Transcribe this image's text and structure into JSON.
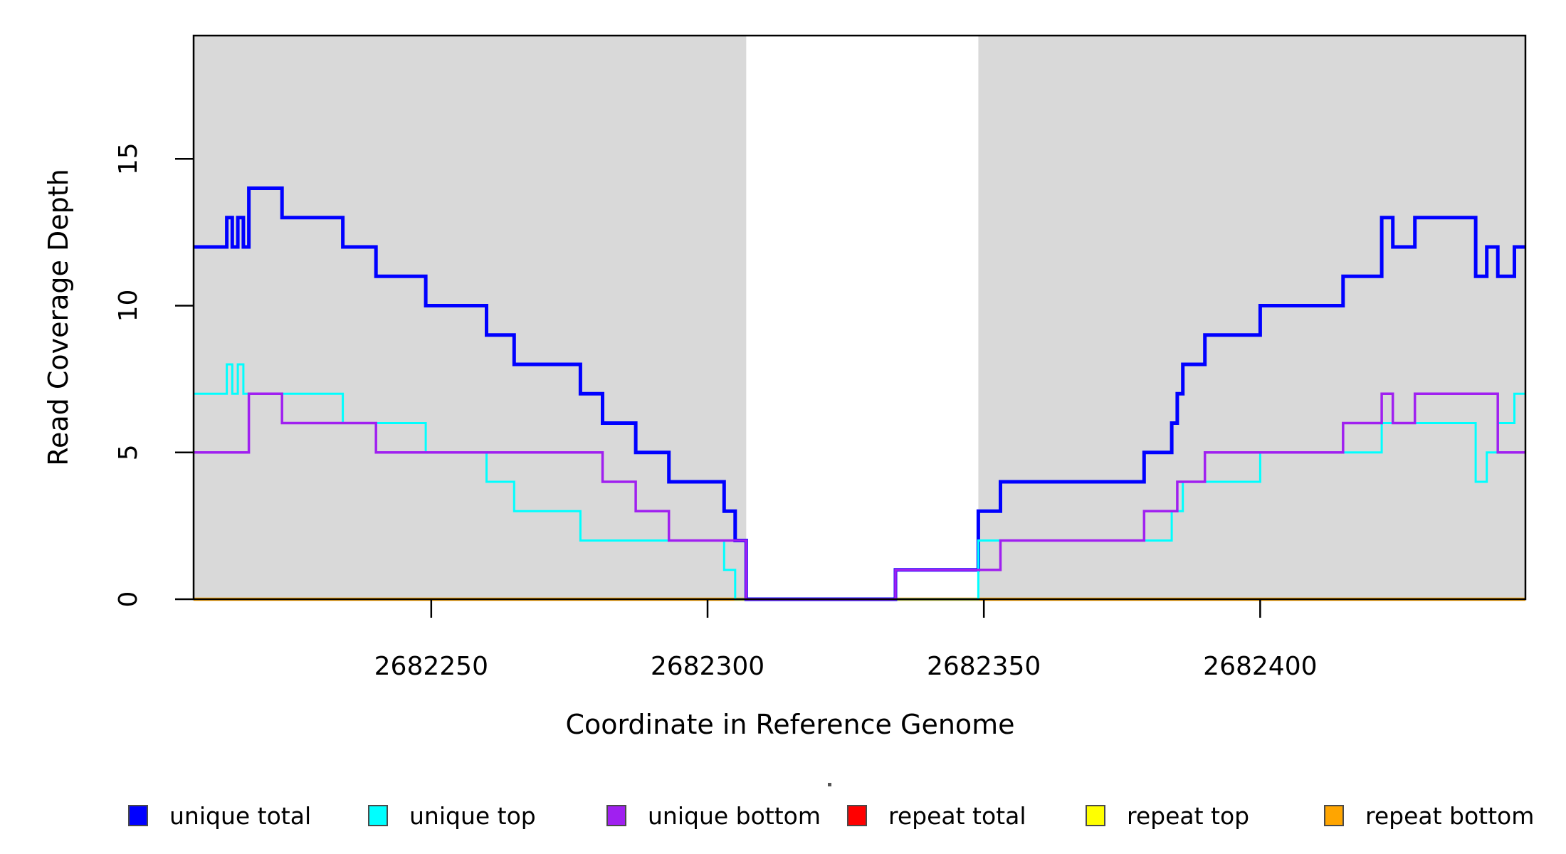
{
  "figure": {
    "background_color": "#FFFFFF",
    "plot_background_shading_color": "#D9D9D9"
  },
  "y_axis": {
    "title": "Read Coverage Depth",
    "ticks": [
      {
        "value": 0,
        "label": "0"
      },
      {
        "value": 5,
        "label": "5"
      },
      {
        "value": 10,
        "label": "10"
      },
      {
        "value": 15,
        "label": "15"
      }
    ]
  },
  "x_axis": {
    "title": "Coordinate in Reference Genome",
    "ticks": [
      {
        "value": 2682250,
        "label": "2682250"
      },
      {
        "value": 2682300,
        "label": "2682300"
      },
      {
        "value": 2682350,
        "label": "2682350"
      },
      {
        "value": 2682400,
        "label": "2682400"
      }
    ]
  },
  "legend": {
    "items": [
      {
        "label": "unique total",
        "color": "#0000FF"
      },
      {
        "label": "unique top",
        "color": "#00FFFF"
      },
      {
        "label": "unique bottom",
        "color": "#A020F0"
      },
      {
        "label": "repeat total",
        "color": "#FF0000"
      },
      {
        "label": "repeat top",
        "color": "#FFFF00"
      },
      {
        "label": "repeat bottom",
        "color": "#FFA500"
      }
    ]
  },
  "chart_data": {
    "type": "line",
    "subtype": "step-after",
    "title": "",
    "xlabel": "Coordinate in Reference Genome",
    "ylabel": "Read Coverage Depth",
    "x_range": [
      2682207,
      2682448
    ],
    "y_range": [
      0,
      19.2
    ],
    "x_ticks": [
      2682250,
      2682300,
      2682350,
      2682400
    ],
    "y_ticks": [
      0,
      5,
      10,
      15
    ],
    "grid": false,
    "legend_position": "below",
    "shaded_regions": [
      {
        "from": 2682207,
        "to": 2682307,
        "color": "#D9D9D9",
        "meaning": "shaded-region-left"
      },
      {
        "from": 2682349,
        "to": 2682448,
        "color": "#D9D9D9",
        "meaning": "shaded-region-right"
      }
    ],
    "series": [
      {
        "name": "unique total",
        "color": "#0000FF",
        "stroke_width": 5,
        "draw_order": 4,
        "points": [
          [
            2682207,
            12
          ],
          [
            2682213,
            13
          ],
          [
            2682214,
            12
          ],
          [
            2682215,
            13
          ],
          [
            2682216,
            12
          ],
          [
            2682217,
            14
          ],
          [
            2682223,
            13
          ],
          [
            2682234,
            12
          ],
          [
            2682240,
            11
          ],
          [
            2682249,
            10
          ],
          [
            2682260,
            9
          ],
          [
            2682265,
            8
          ],
          [
            2682277,
            7
          ],
          [
            2682281,
            6
          ],
          [
            2682287,
            5
          ],
          [
            2682293,
            4
          ],
          [
            2682303,
            3
          ],
          [
            2682305,
            2
          ],
          [
            2682307,
            0
          ],
          [
            2682334,
            1
          ],
          [
            2682349,
            3
          ],
          [
            2682353,
            4
          ],
          [
            2682379,
            5
          ],
          [
            2682384,
            6
          ],
          [
            2682385,
            7
          ],
          [
            2682386,
            8
          ],
          [
            2682390,
            9
          ],
          [
            2682400,
            10
          ],
          [
            2682415,
            11
          ],
          [
            2682422,
            13
          ],
          [
            2682424,
            12
          ],
          [
            2682428,
            13
          ],
          [
            2682439,
            11
          ],
          [
            2682441,
            12
          ],
          [
            2682443,
            11
          ],
          [
            2682446,
            12
          ]
        ]
      },
      {
        "name": "unique top",
        "color": "#00FFFF",
        "stroke_width": 3,
        "draw_order": 5,
        "points": [
          [
            2682207,
            7
          ],
          [
            2682213,
            8
          ],
          [
            2682214,
            7
          ],
          [
            2682215,
            8
          ],
          [
            2682216,
            7
          ],
          [
            2682234,
            6
          ],
          [
            2682249,
            5
          ],
          [
            2682260,
            4
          ],
          [
            2682265,
            3
          ],
          [
            2682277,
            2
          ],
          [
            2682303,
            1
          ],
          [
            2682305,
            0
          ],
          [
            2682349,
            2
          ],
          [
            2682384,
            3
          ],
          [
            2682386,
            4
          ],
          [
            2682400,
            5
          ],
          [
            2682422,
            6
          ],
          [
            2682439,
            4
          ],
          [
            2682441,
            5
          ],
          [
            2682443,
            6
          ],
          [
            2682446,
            7
          ]
        ]
      },
      {
        "name": "unique bottom",
        "color": "#A020F0",
        "stroke_width": 3.5,
        "draw_order": 6,
        "points": [
          [
            2682207,
            5
          ],
          [
            2682217,
            7
          ],
          [
            2682223,
            6
          ],
          [
            2682240,
            5
          ],
          [
            2682281,
            4
          ],
          [
            2682287,
            3
          ],
          [
            2682293,
            2
          ],
          [
            2682307,
            0
          ],
          [
            2682334,
            1
          ],
          [
            2682353,
            2
          ],
          [
            2682379,
            3
          ],
          [
            2682385,
            4
          ],
          [
            2682390,
            5
          ],
          [
            2682415,
            6
          ],
          [
            2682422,
            7
          ],
          [
            2682424,
            6
          ],
          [
            2682428,
            7
          ],
          [
            2682443,
            5
          ]
        ]
      },
      {
        "name": "repeat total",
        "color": "#FF0000",
        "stroke_width": 3,
        "draw_order": 1,
        "points": [
          [
            2682207,
            0
          ]
        ]
      },
      {
        "name": "repeat top",
        "color": "#FFFF00",
        "stroke_width": 3,
        "draw_order": 2,
        "points": [
          [
            2682207,
            0
          ]
        ]
      },
      {
        "name": "repeat bottom",
        "color": "#FFA500",
        "stroke_width": 4.5,
        "draw_order": 3,
        "points": [
          [
            2682207,
            0
          ]
        ]
      }
    ]
  }
}
